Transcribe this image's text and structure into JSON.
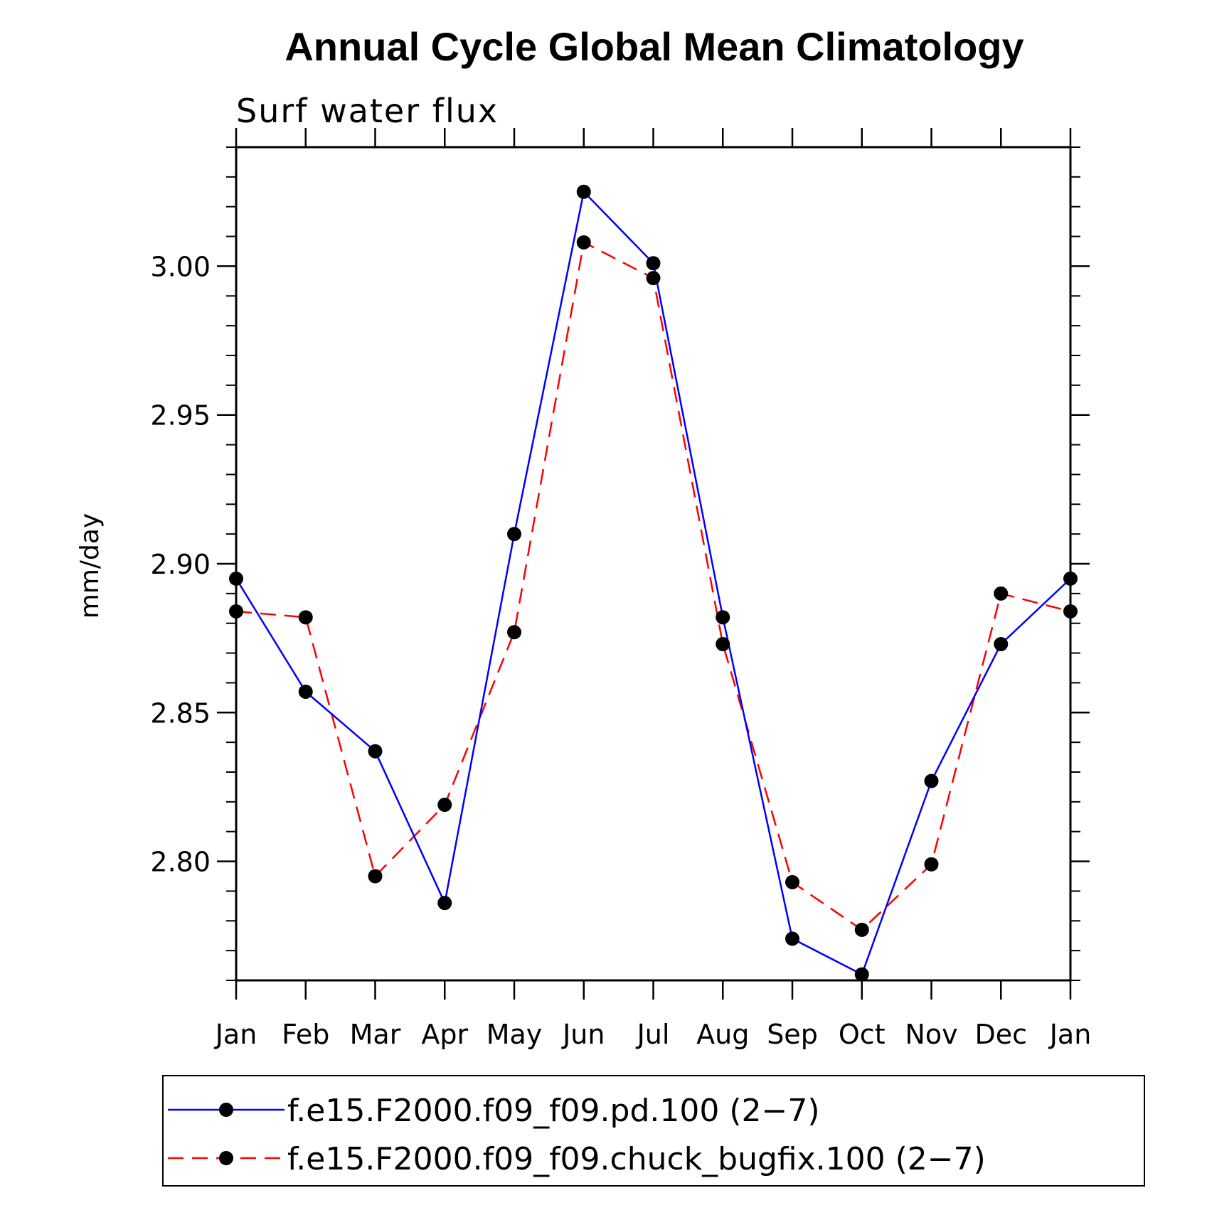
{
  "chart_data": {
    "type": "line",
    "title": "Annual Cycle Global Mean Climatology",
    "subtitle": "Surf water flux",
    "xlabel": "",
    "ylabel": "mm/day",
    "categories": [
      "Jan",
      "Feb",
      "Mar",
      "Apr",
      "May",
      "Jun",
      "Jul",
      "Aug",
      "Sep",
      "Oct",
      "Nov",
      "Dec",
      "Jan"
    ],
    "ylim": [
      2.76,
      3.04
    ],
    "yticks": [
      2.8,
      2.85,
      2.9,
      2.95,
      3.0
    ],
    "ytick_labels": [
      "2.80",
      "2.85",
      "2.90",
      "2.95",
      "3.00"
    ],
    "grid": false,
    "legend_position": "bottom",
    "series": [
      {
        "name": "f.e15.F2000.f09_f09.pd.100 (2−7)",
        "color": "#0000ff",
        "line_style": "solid",
        "marker": "filled-circle",
        "values": [
          2.895,
          2.857,
          2.837,
          2.786,
          2.91,
          3.025,
          3.001,
          2.882,
          2.774,
          2.762,
          2.827,
          2.873,
          2.895
        ]
      },
      {
        "name": "f.e15.F2000.f09_f09.chuck_bugfix.100 (2−7)",
        "color": "#ff0000",
        "line_style": "dashed",
        "marker": "filled-circle",
        "values": [
          2.884,
          2.882,
          2.795,
          2.819,
          2.877,
          3.008,
          2.996,
          2.873,
          2.793,
          2.777,
          2.799,
          2.89,
          2.884
        ]
      }
    ]
  }
}
